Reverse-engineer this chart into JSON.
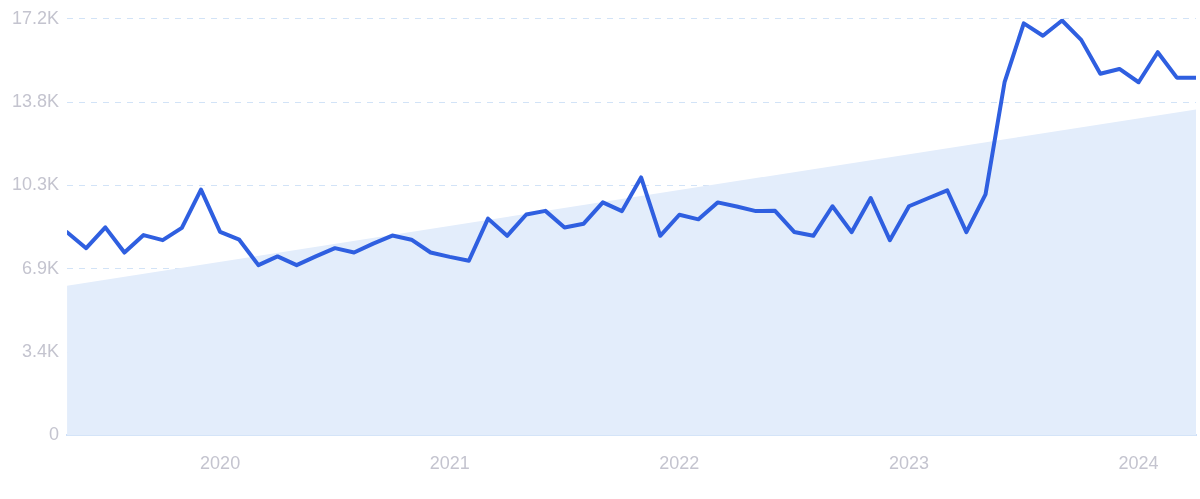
{
  "chart_data": {
    "type": "line",
    "x": [
      "2019-05",
      "2019-06",
      "2019-07",
      "2019-08",
      "2019-09",
      "2019-10",
      "2019-11",
      "2019-12",
      "2020-01",
      "2020-02",
      "2020-03",
      "2020-04",
      "2020-05",
      "2020-06",
      "2020-07",
      "2020-08",
      "2020-09",
      "2020-10",
      "2020-11",
      "2020-12",
      "2021-01",
      "2021-02",
      "2021-03",
      "2021-04",
      "2021-05",
      "2021-06",
      "2021-07",
      "2021-08",
      "2021-09",
      "2021-10",
      "2021-11",
      "2021-12",
      "2022-01",
      "2022-02",
      "2022-03",
      "2022-04",
      "2022-05",
      "2022-06",
      "2022-07",
      "2022-08",
      "2022-09",
      "2022-10",
      "2022-11",
      "2022-12",
      "2023-01",
      "2023-02",
      "2023-03",
      "2023-04",
      "2023-05",
      "2023-06",
      "2023-07",
      "2023-08",
      "2023-09",
      "2023-10",
      "2023-11",
      "2023-12",
      "2024-01",
      "2024-02",
      "2024-03",
      "2024-04"
    ],
    "series": [
      {
        "type": "area",
        "color": "#e3edfb",
        "x": [
          "2019-05",
          "2024-04"
        ],
        "values": [
          6180,
          13460
        ]
      },
      {
        "color": "#2f5fe0",
        "values": [
          8390,
          7730,
          8590,
          7550,
          8270,
          8060,
          8570,
          10150,
          8400,
          8080,
          7030,
          7390,
          7030,
          7390,
          7730,
          7550,
          7920,
          8250,
          8080,
          7550,
          7370,
          7210,
          8950,
          8240,
          9120,
          9270,
          8580,
          8740,
          9620,
          9260,
          10650,
          8240,
          9110,
          8920,
          9620,
          9450,
          9260,
          9270,
          8400,
          8240,
          9460,
          8390,
          9800,
          8060,
          9460,
          9790,
          10120,
          8390,
          9950,
          14600,
          17010,
          16500,
          17130,
          16330,
          14930,
          15130,
          14580,
          15820,
          14770,
          14770
        ]
      }
    ],
    "xlim": [
      "2019-05",
      "2024-04"
    ],
    "xticks": [
      {
        "value": "2020-01",
        "label": "2020"
      },
      {
        "value": "2021-01",
        "label": "2021"
      },
      {
        "value": "2022-01",
        "label": "2022"
      },
      {
        "value": "2023-01",
        "label": "2023"
      },
      {
        "value": "2024-01",
        "label": "2024"
      }
    ],
    "ylim": [
      0,
      17200
    ],
    "yticks": [
      0,
      {
        "value": 3440,
        "label": "3.4K"
      },
      {
        "value": 6880,
        "label": "6.9K"
      },
      {
        "value": 10320,
        "label": "10.3K"
      },
      {
        "value": 13760,
        "label": "13.8K"
      },
      {
        "value": 17200,
        "label": "17.2K"
      }
    ],
    "grid": "y",
    "legend": false,
    "marker": "none",
    "line_style": "solid"
  }
}
